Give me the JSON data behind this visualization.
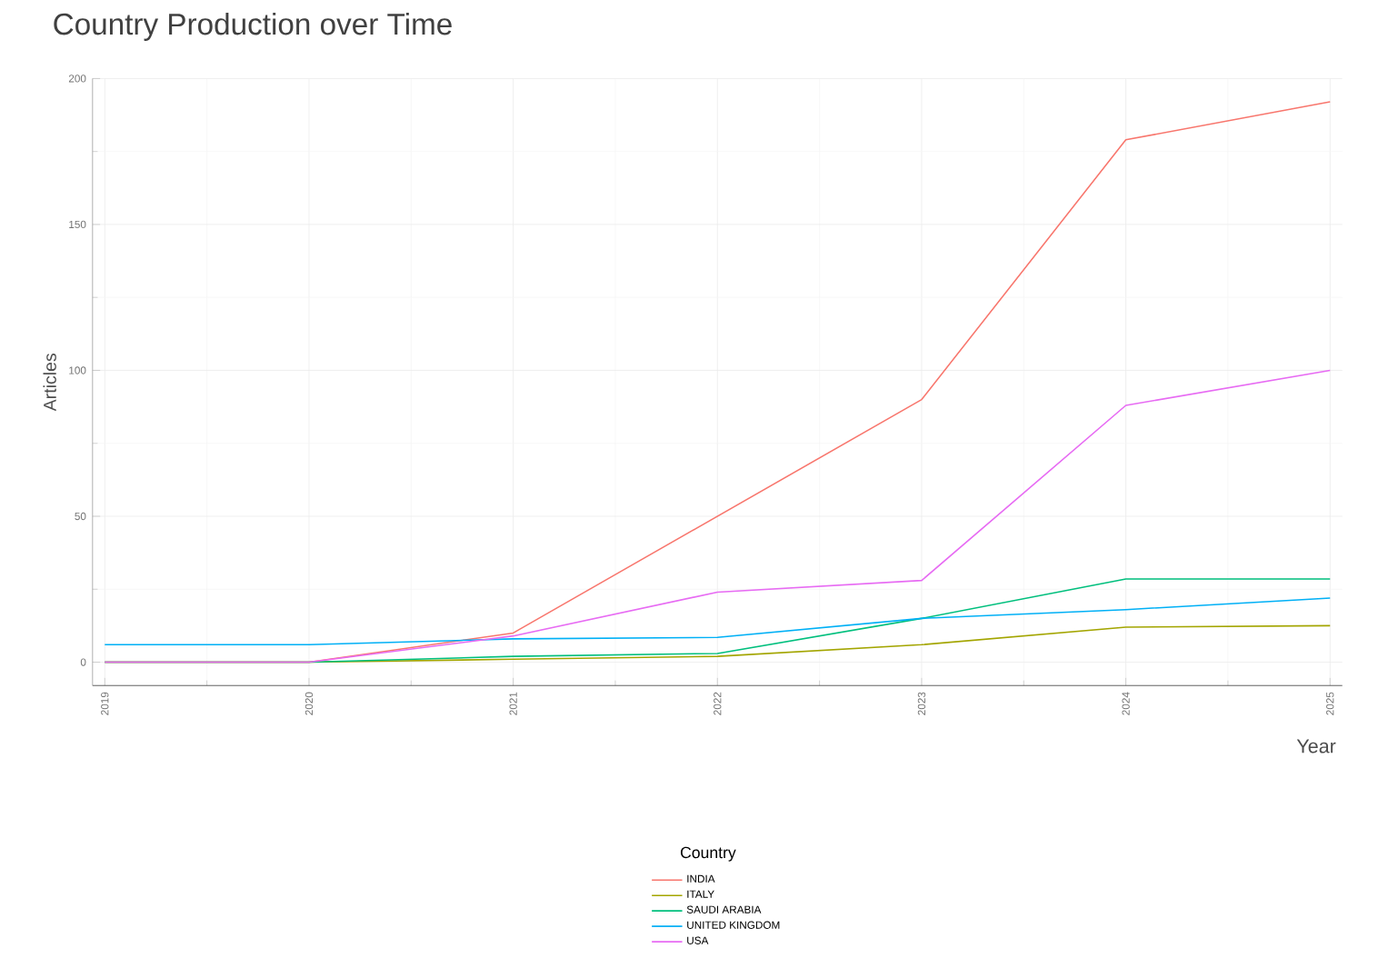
{
  "chart_data": {
    "type": "line",
    "title": "Country Production over Time",
    "xlabel": "Year",
    "ylabel": "Articles",
    "legend_title": "Country",
    "x": [
      2019,
      2020,
      2021,
      2022,
      2023,
      2024,
      2025
    ],
    "series": [
      {
        "name": "INDIA",
        "color": "#f8766d",
        "values": [
          0,
          0,
          10,
          50,
          90,
          179,
          192
        ]
      },
      {
        "name": "ITALY",
        "color": "#a3a500",
        "values": [
          0,
          0,
          1,
          2,
          6,
          12,
          12.5
        ]
      },
      {
        "name": "SAUDI ARABIA",
        "color": "#00bf7d",
        "values": [
          0,
          0,
          2,
          3,
          15,
          28.5,
          28.5
        ]
      },
      {
        "name": "UNITED KINGDOM",
        "color": "#00b0f6",
        "values": [
          6,
          6,
          8,
          8.5,
          15,
          18,
          22
        ]
      },
      {
        "name": "USA",
        "color": "#e76bf3",
        "values": [
          0,
          0,
          9,
          24,
          28,
          88,
          100
        ]
      }
    ],
    "xlim": [
      2019,
      2025
    ],
    "xticks": [
      2019,
      2020,
      2021,
      2022,
      2023,
      2024,
      2025
    ],
    "ylim": [
      -8,
      200
    ],
    "yticks": [
      0,
      50,
      100,
      150,
      200
    ],
    "grid": true,
    "legend": "bottom",
    "marker": "none",
    "line_style": "solid"
  }
}
